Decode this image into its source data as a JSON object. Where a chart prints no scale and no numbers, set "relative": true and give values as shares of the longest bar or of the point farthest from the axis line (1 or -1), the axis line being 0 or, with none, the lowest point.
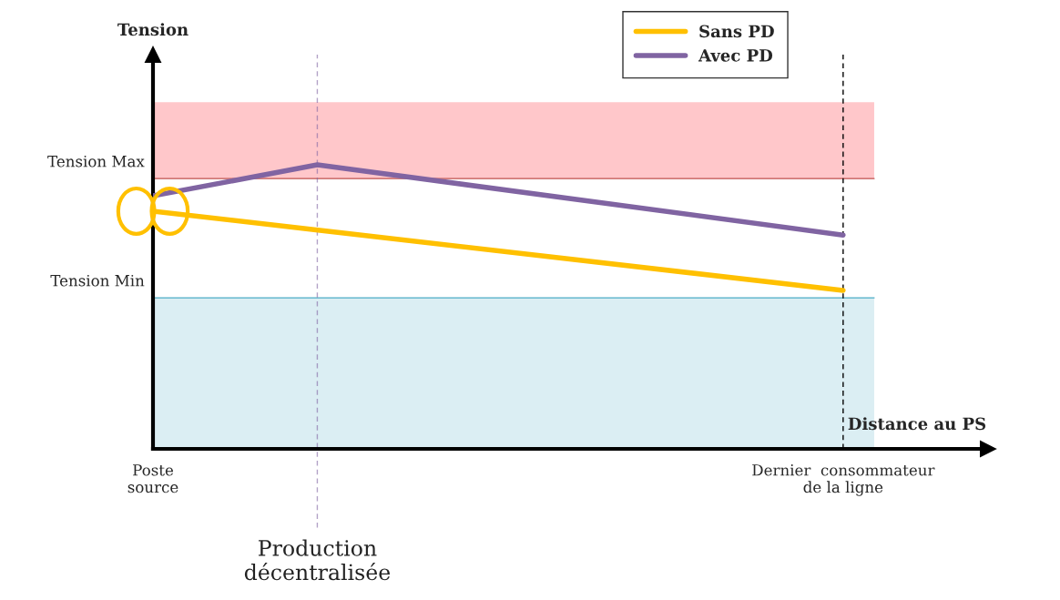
{
  "chart_data": {
    "type": "line",
    "relative": true,
    "xlabel": "Distance au PS",
    "categories": [
      "Poste\nsource",
      null,
      null,
      null,
      null,
      null,
      null,
      null,
      null,
      null,
      null,
      null,
      null,
      null,
      null,
      null,
      null,
      null,
      null,
      null,
      null,
      "Dernier  consommateur\nde la ligne"
    ],
    "series": [
      {
        "name": "Sans PD",
        "color": "#ffc000",
        "values": [
          0.837,
          null,
          null,
          null,
          null,
          null,
          null,
          null,
          null,
          null,
          null,
          null,
          null,
          null,
          null,
          null,
          null,
          null,
          null,
          null,
          null,
          0.558
        ]
      },
      {
        "name": "Avec PD",
        "color": "#8064a2",
        "values": [
          0.891,
          null,
          null,
          null,
          null,
          1,
          null,
          null,
          null,
          null,
          null,
          null,
          null,
          null,
          null,
          null,
          null,
          null,
          null,
          null,
          null,
          0.753
        ]
      }
    ],
    "annotations": [
      "Tension",
      "Production\ndécentralisée"
    ],
    "ref_lines": [
      {
        "axis": "y",
        "value": 0.952,
        "label": "Tension Max",
        "color": "#c0504d",
        "line_style": "solid"
      },
      {
        "axis": "y",
        "value": 0.532,
        "label": "Tension Min",
        "color": "#4bacc6",
        "line_style": "solid"
      }
    ],
    "bands": [
      {
        "axis": "y",
        "from": 0.952,
        "to": 1.221,
        "color": "#ffc7ca"
      },
      {
        "axis": "y",
        "from": 0,
        "to": 0.532,
        "color": "#dbeef3"
      }
    ],
    "legend": "top right",
    "grid": false,
    "marker": "none",
    "line_style": "solid"
  }
}
